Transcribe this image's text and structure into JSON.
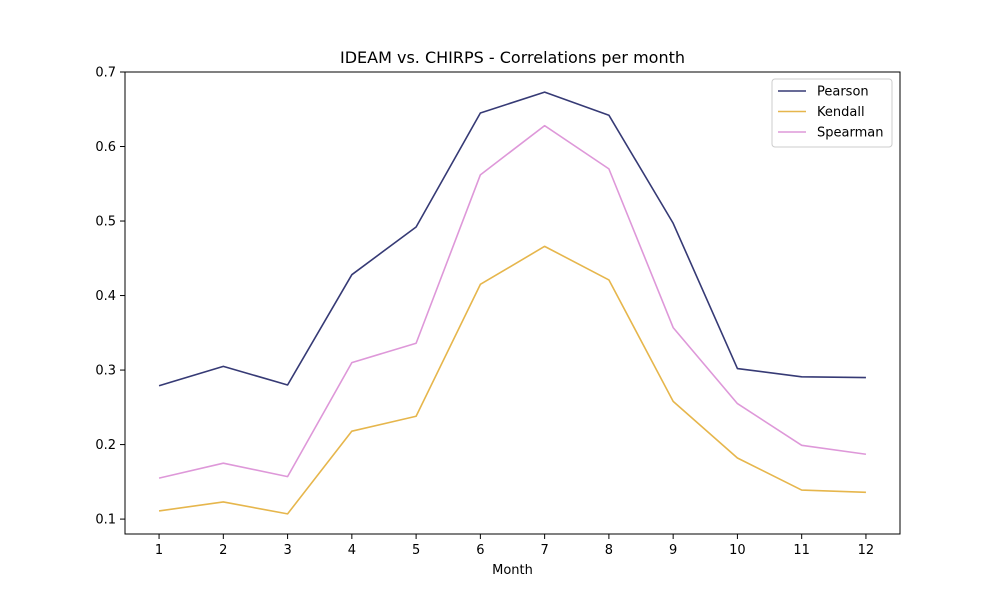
{
  "chart_data": {
    "type": "line",
    "title": "IDEAM vs. CHIRPS - Correlations per month",
    "xlabel": "Month",
    "ylabel": "",
    "x": [
      1,
      2,
      3,
      4,
      5,
      6,
      7,
      8,
      9,
      10,
      11,
      12
    ],
    "xlim": [
      0.47,
      12.53
    ],
    "ylim": [
      0.08,
      0.7
    ],
    "yticks": [
      0.1,
      0.2,
      0.3,
      0.4,
      0.5,
      0.6,
      0.7
    ],
    "ytick_labels": [
      "0.1",
      "0.2",
      "0.3",
      "0.4",
      "0.5",
      "0.6",
      "0.7"
    ],
    "xtick_labels": [
      "1",
      "2",
      "3",
      "4",
      "5",
      "6",
      "7",
      "8",
      "9",
      "10",
      "11",
      "12"
    ],
    "grid": false,
    "legend_position": "top-right",
    "series": [
      {
        "name": "Pearson",
        "color": "#363a75",
        "values": [
          0.279,
          0.305,
          0.28,
          0.428,
          0.492,
          0.645,
          0.673,
          0.642,
          0.497,
          0.302,
          0.291,
          0.29
        ]
      },
      {
        "name": "Kendall",
        "color": "#e6b64c",
        "values": [
          0.111,
          0.123,
          0.107,
          0.218,
          0.238,
          0.415,
          0.466,
          0.421,
          0.258,
          0.182,
          0.139,
          0.136
        ]
      },
      {
        "name": "Spearman",
        "color": "#de98d9",
        "values": [
          0.155,
          0.175,
          0.157,
          0.31,
          0.336,
          0.562,
          0.628,
          0.57,
          0.357,
          0.255,
          0.199,
          0.187
        ]
      }
    ]
  }
}
